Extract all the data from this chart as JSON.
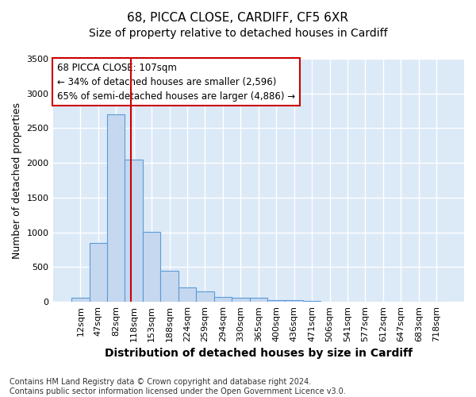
{
  "title": "68, PICCA CLOSE, CARDIFF, CF5 6XR",
  "subtitle": "Size of property relative to detached houses in Cardiff",
  "xlabel": "Distribution of detached houses by size in Cardiff",
  "ylabel": "Number of detached properties",
  "footnote1": "Contains HM Land Registry data © Crown copyright and database right 2024.",
  "footnote2": "Contains public sector information licensed under the Open Government Licence v3.0.",
  "annotation_title": "68 PICCA CLOSE: 107sqm",
  "annotation_line1": "← 34% of detached houses are smaller (2,596)",
  "annotation_line2": "65% of semi-detached houses are larger (4,886) →",
  "bar_labels": [
    "12sqm",
    "47sqm",
    "82sqm",
    "118sqm",
    "153sqm",
    "188sqm",
    "224sqm",
    "259sqm",
    "294sqm",
    "330sqm",
    "365sqm",
    "400sqm",
    "436sqm",
    "471sqm",
    "506sqm",
    "541sqm",
    "577sqm",
    "612sqm",
    "647sqm",
    "683sqm",
    "718sqm"
  ],
  "bar_values": [
    55,
    850,
    2700,
    2050,
    1010,
    450,
    210,
    145,
    70,
    55,
    55,
    30,
    25,
    15,
    0,
    0,
    0,
    0,
    0,
    0,
    0
  ],
  "bar_color": "#c5d8f0",
  "bar_edge_color": "#5b9bd5",
  "vline_color": "#cc0000",
  "ylim": [
    0,
    3500
  ],
  "yticks": [
    0,
    500,
    1000,
    1500,
    2000,
    2500,
    3000,
    3500
  ],
  "annotation_box_facecolor": "#ffffff",
  "annotation_box_edgecolor": "#cc0000",
  "fig_facecolor": "#ffffff",
  "axes_facecolor": "#dce9f7",
  "grid_color": "#ffffff",
  "title_fontsize": 11,
  "subtitle_fontsize": 10,
  "ylabel_fontsize": 9,
  "xlabel_fontsize": 10,
  "tick_fontsize": 8,
  "annotation_fontsize": 8.5,
  "footnote_fontsize": 7
}
